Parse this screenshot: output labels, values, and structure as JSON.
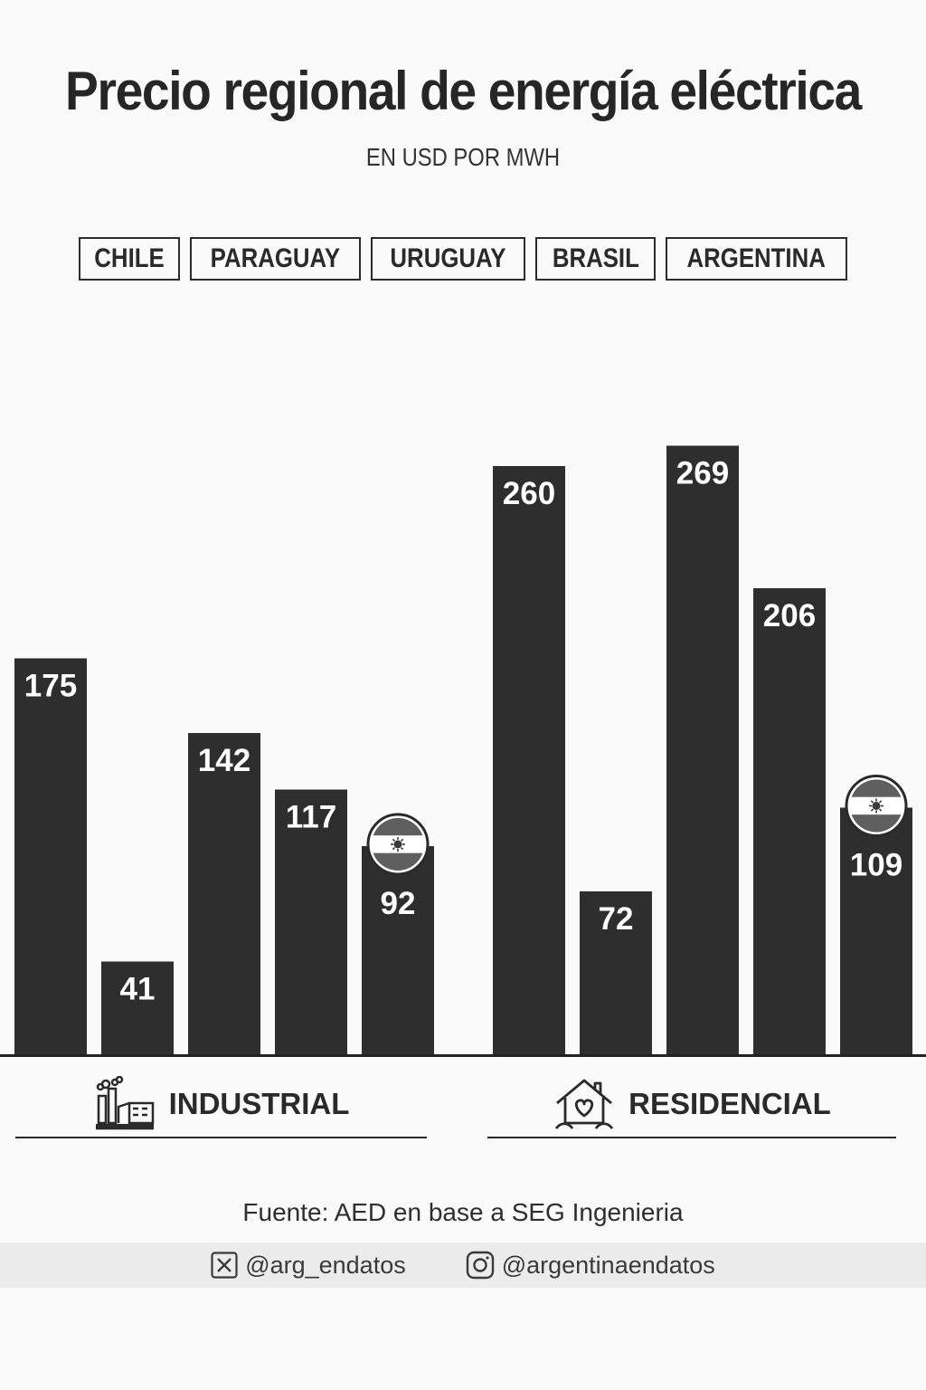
{
  "title": "Precio regional de energía eléctrica",
  "subtitle": "EN USD POR MWH",
  "legend": [
    "CHILE",
    "PARAGUAY",
    "URUGUAY",
    "BRASIL",
    "ARGENTINA"
  ],
  "groups": {
    "industrial": {
      "label": "INDUSTRIAL",
      "icon": "factory-icon"
    },
    "residencial": {
      "label": "RESIDENCIAL",
      "icon": "house-heart-icon"
    }
  },
  "source": "Fuente: AED en base a SEG Ingenieria",
  "social": {
    "x_handle": "@arg_endatos",
    "instagram_handle": "@argentinaendatos"
  },
  "colors": {
    "bar": "#2e2e2e",
    "background": "#fafafa"
  },
  "chart_data": {
    "type": "bar",
    "categories": [
      "INDUSTRIAL",
      "RESIDENCIAL"
    ],
    "series": [
      {
        "name": "CHILE",
        "values": [
          175,
          260
        ]
      },
      {
        "name": "PARAGUAY",
        "values": [
          41,
          72
        ]
      },
      {
        "name": "URUGUAY",
        "values": [
          142,
          269
        ]
      },
      {
        "name": "BRASIL",
        "values": [
          117,
          206
        ]
      },
      {
        "name": "ARGENTINA",
        "values": [
          92,
          109
        ],
        "marker": "argentina-flag-icon"
      }
    ],
    "title": "Precio regional de energía eléctrica",
    "ylabel": "EN USD POR MWH",
    "ylim": [
      0,
      300
    ],
    "grid": false,
    "data_labels": true,
    "legend_position": "top"
  }
}
